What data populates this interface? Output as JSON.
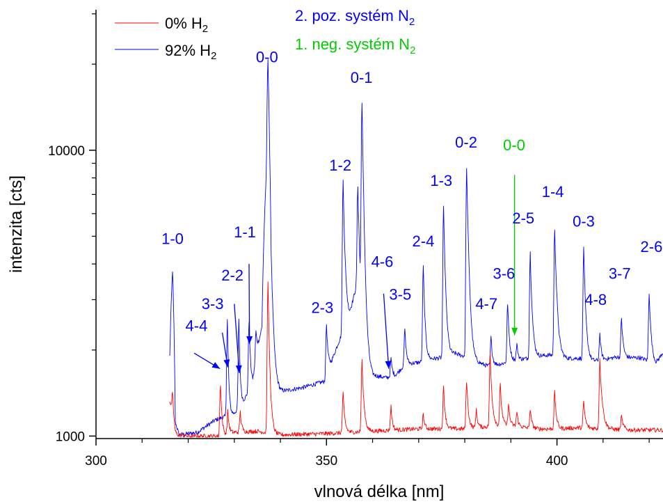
{
  "chart_data": {
    "type": "line",
    "xlabel": "vlnová délka [nm]",
    "ylabel": "intenzita [cts]",
    "xlim": [
      300,
      423
    ],
    "ylim": [
      980,
      31000
    ],
    "yscale": "log",
    "x_ticks": [
      {
        "value": 300,
        "label": "300"
      },
      {
        "value": 350,
        "label": "350"
      },
      {
        "value": 400,
        "label": "400"
      }
    ],
    "x_minor_ticks": [
      310,
      320,
      330,
      340,
      360,
      370,
      380,
      390,
      410,
      420
    ],
    "y_ticks": [
      {
        "value": 1000,
        "label": "1000"
      },
      {
        "value": 10000,
        "label": "10000"
      }
    ],
    "y_minor_ticks": [
      2000,
      3000,
      4000,
      5000,
      6000,
      7000,
      8000,
      9000,
      20000,
      30000
    ],
    "colors": {
      "series_0": "#ff0000",
      "series_92": "#0000ff",
      "system_pos": "#0000ff",
      "system_neg": "#00cc00"
    },
    "legend": {
      "placement": "top-left",
      "entries": [
        {
          "key": "s0",
          "prefix": "0% H",
          "sub": "2",
          "color": "#ff0000"
        },
        {
          "key": "s92",
          "prefix": "92% H",
          "sub": "2",
          "color": "#0000ff"
        }
      ]
    },
    "systems": [
      {
        "prefix": "2. poz. systém N",
        "sub": "2",
        "color": "#0000ff"
      },
      {
        "prefix": "1. neg. systém N",
        "sub": "2",
        "color": "#00cc00"
      }
    ],
    "series": [
      {
        "key": "s92",
        "name": "92% H2",
        "color": "#0000ff",
        "baseline": [
          [
            316.0,
            1900
          ],
          [
            316.6,
            3800
          ],
          [
            317.2,
            1120
          ],
          [
            318,
            1010
          ],
          [
            322,
            1030
          ],
          [
            326,
            1140
          ],
          [
            330,
            1200
          ],
          [
            332,
            1320
          ],
          [
            334,
            1520
          ],
          [
            336,
            2400
          ],
          [
            337.1,
            9000
          ],
          [
            338,
            1500
          ],
          [
            340,
            1430
          ],
          [
            345,
            1480
          ],
          [
            350,
            1560
          ],
          [
            352,
            2000
          ],
          [
            355,
            2600
          ],
          [
            357.0,
            3600
          ],
          [
            358,
            1850
          ],
          [
            360,
            1630
          ],
          [
            363,
            1600
          ],
          [
            365,
            1630
          ],
          [
            367,
            1780
          ],
          [
            370,
            1810
          ],
          [
            373,
            1860
          ],
          [
            375,
            1880
          ],
          [
            378,
            1940
          ],
          [
            380,
            1900
          ],
          [
            382,
            1820
          ],
          [
            385,
            1760
          ],
          [
            388,
            1790
          ],
          [
            390,
            1830
          ],
          [
            392,
            1850
          ],
          [
            395,
            1890
          ],
          [
            398,
            1920
          ],
          [
            400,
            1920
          ],
          [
            402,
            1870
          ],
          [
            405,
            1870
          ],
          [
            408,
            1830
          ],
          [
            410,
            1850
          ],
          [
            413,
            1890
          ],
          [
            415,
            1880
          ],
          [
            418,
            1880
          ],
          [
            420,
            1830
          ],
          [
            421.5,
            1790
          ],
          [
            423,
            1960
          ]
        ],
        "peaks": [
          [
            328.5,
            1380,
            0.25
          ],
          [
            331,
            1280,
            0.25
          ],
          [
            333.2,
            1100,
            0.3
          ],
          [
            334.7,
            500,
            0.3
          ],
          [
            337.3,
            13500,
            0.45
          ],
          [
            350.0,
            900,
            0.35
          ],
          [
            353.6,
            5500,
            0.4
          ],
          [
            356.8,
            4000,
            0.3
          ],
          [
            357.7,
            12300,
            0.4
          ],
          [
            364.0,
            250,
            0.3
          ],
          [
            367.0,
            600,
            0.3
          ],
          [
            371.0,
            2100,
            0.35
          ],
          [
            375.4,
            4400,
            0.4
          ],
          [
            380.4,
            6700,
            0.45
          ],
          [
            385.7,
            450,
            0.3
          ],
          [
            389.3,
            1100,
            0.35
          ],
          [
            391.3,
            250,
            0.3
          ],
          [
            394.2,
            2500,
            0.4
          ],
          [
            399.5,
            3400,
            0.45
          ],
          [
            405.8,
            2650,
            0.4
          ],
          [
            409.3,
            430,
            0.3
          ],
          [
            414.0,
            700,
            0.35
          ],
          [
            420.0,
            1350,
            0.4
          ]
        ]
      },
      {
        "key": "s0",
        "name": "0% H2",
        "color": "#ff0000",
        "baseline": [
          [
            316.0,
            1330
          ],
          [
            316.5,
            1200
          ],
          [
            317.2,
            1010
          ],
          [
            320,
            1000
          ],
          [
            325,
            1000
          ],
          [
            327.0,
            1000
          ],
          [
            330,
            1030
          ],
          [
            335,
            1040
          ],
          [
            340,
            1010
          ],
          [
            350,
            1020
          ],
          [
            360,
            1040
          ],
          [
            370,
            1060
          ],
          [
            380,
            1060
          ],
          [
            385,
            1080
          ],
          [
            390,
            1090
          ],
          [
            395,
            1060
          ],
          [
            400,
            1060
          ],
          [
            405,
            1070
          ],
          [
            410,
            1060
          ],
          [
            415,
            1050
          ],
          [
            420,
            1050
          ],
          [
            423,
            1050
          ]
        ],
        "peaks": [
          [
            316.6,
            230,
            0.3
          ],
          [
            327.0,
            520,
            0.3
          ],
          [
            328.6,
            200,
            0.3
          ],
          [
            331.3,
            180,
            0.3
          ],
          [
            337.3,
            2400,
            0.35
          ],
          [
            353.6,
            380,
            0.35
          ],
          [
            357.7,
            800,
            0.4
          ],
          [
            364.0,
            220,
            0.3
          ],
          [
            371.0,
            130,
            0.3
          ],
          [
            375.4,
            420,
            0.35
          ],
          [
            380.4,
            500,
            0.35
          ],
          [
            382.5,
            160,
            0.3
          ],
          [
            385.5,
            850,
            0.4
          ],
          [
            387.7,
            420,
            0.35
          ],
          [
            389.5,
            200,
            0.3
          ],
          [
            391.3,
            130,
            0.3
          ],
          [
            394.2,
            170,
            0.35
          ],
          [
            399.5,
            360,
            0.35
          ],
          [
            405.8,
            250,
            0.35
          ],
          [
            409.3,
            780,
            0.5
          ],
          [
            414.0,
            120,
            0.4
          ]
        ]
      }
    ],
    "band_labels": [
      {
        "text": "1-0",
        "x": 316.6,
        "y": 4700,
        "color": "#0000ff"
      },
      {
        "text": "4-4",
        "x": 321.8,
        "y": 2330,
        "color": "#0000ff"
      },
      {
        "text": "3-3",
        "x": 325.3,
        "y": 2780,
        "color": "#0000ff"
      },
      {
        "text": "2-2",
        "x": 329.6,
        "y": 3500,
        "color": "#0000ff"
      },
      {
        "text": "1-1",
        "x": 332.3,
        "y": 4950,
        "color": "#0000ff"
      },
      {
        "text": "0-0",
        "x": 337.1,
        "y": 20300,
        "color": "#0000ff"
      },
      {
        "text": "2-3",
        "x": 349.1,
        "y": 2700,
        "color": "#0000ff"
      },
      {
        "text": "1-2",
        "x": 353.0,
        "y": 8500,
        "color": "#0000ff"
      },
      {
        "text": "0-1",
        "x": 357.6,
        "y": 17200,
        "color": "#0000ff"
      },
      {
        "text": "4-6",
        "x": 362.1,
        "y": 3900,
        "color": "#0000ff"
      },
      {
        "text": "3-5",
        "x": 366.0,
        "y": 3000,
        "color": "#0000ff"
      },
      {
        "text": "2-4",
        "x": 371.0,
        "y": 4600,
        "color": "#0000ff"
      },
      {
        "text": "1-3",
        "x": 374.9,
        "y": 7500,
        "color": "#0000ff"
      },
      {
        "text": "0-2",
        "x": 380.3,
        "y": 10200,
        "color": "#0000ff"
      },
      {
        "text": "0-0",
        "x": 390.7,
        "y": 10000,
        "color": "#00cc00"
      },
      {
        "text": "4-7",
        "x": 384.7,
        "y": 2780,
        "color": "#0000ff"
      },
      {
        "text": "3-6",
        "x": 388.5,
        "y": 3550,
        "color": "#0000ff"
      },
      {
        "text": "2-5",
        "x": 392.7,
        "y": 5550,
        "color": "#0000ff"
      },
      {
        "text": "1-4",
        "x": 399.1,
        "y": 6850,
        "color": "#0000ff"
      },
      {
        "text": "0-3",
        "x": 405.8,
        "y": 5400,
        "color": "#0000ff"
      },
      {
        "text": "4-8",
        "x": 408.4,
        "y": 2880,
        "color": "#0000ff"
      },
      {
        "text": "3-7",
        "x": 413.6,
        "y": 3550,
        "color": "#0000ff"
      },
      {
        "text": "2-6",
        "x": 420.5,
        "y": 4400,
        "color": "#0000ff"
      }
    ],
    "arrows": [
      {
        "from": [
          321.3,
          1950
        ],
        "to": [
          326.9,
          1720
        ],
        "color": "#0000ff"
      },
      {
        "from": [
          327.4,
          2300
        ],
        "to": [
          328.6,
          1740
        ],
        "color": "#0000ff"
      },
      {
        "from": [
          330.0,
          2900
        ],
        "to": [
          331.1,
          1660
        ],
        "color": "#0000ff"
      },
      {
        "from": [
          333.2,
          4000
        ],
        "to": [
          333.3,
          2100
        ],
        "color": "#0000ff"
      },
      {
        "from": [
          362.4,
          3150
        ],
        "to": [
          363.5,
          1720
        ],
        "color": "#0000ff"
      },
      {
        "from": [
          390.8,
          8200
        ],
        "to": [
          390.8,
          2250
        ],
        "color": "#00cc00"
      }
    ]
  }
}
